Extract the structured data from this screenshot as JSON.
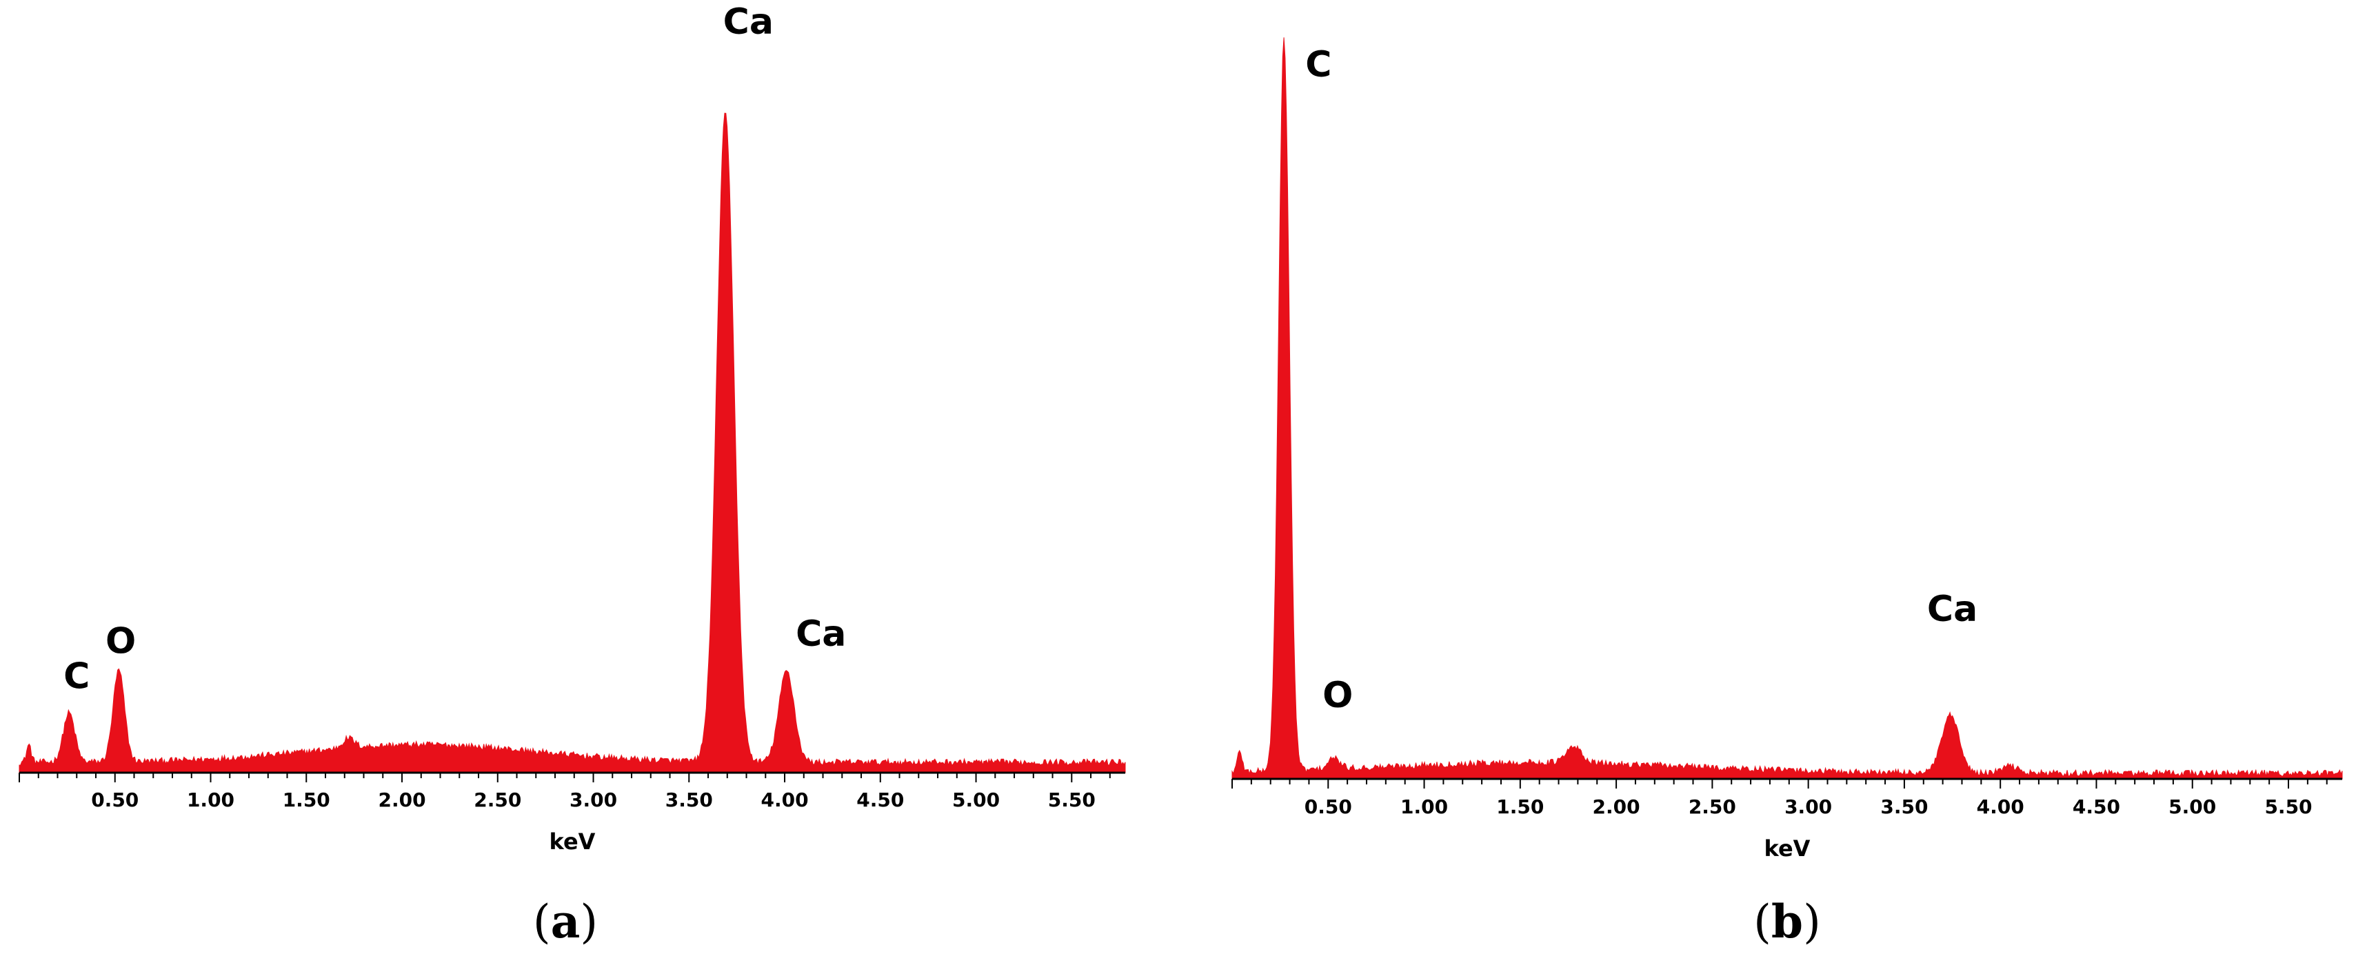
{
  "chart_data": [
    {
      "type": "area",
      "panel": "(a)",
      "panel_letter": "a",
      "xlabel": "keV",
      "xlim": [
        0,
        5.78
      ],
      "ylim": [
        0,
        100
      ],
      "x_ticks": [
        "0.50",
        "1.00",
        "1.50",
        "2.00",
        "2.50",
        "3.00",
        "3.50",
        "4.00",
        "4.50",
        "5.00",
        "5.50"
      ],
      "fill_color": "#e8101a",
      "baseline": 1.5,
      "peaks": [
        {
          "label": "",
          "x": 0.05,
          "height": 2.5,
          "width": 0.012
        },
        {
          "label": "C",
          "x": 0.26,
          "height": 7.0,
          "width": 0.03
        },
        {
          "label": "O",
          "x": 0.52,
          "height": 13.0,
          "width": 0.03
        },
        {
          "label": "Ca",
          "x": 3.69,
          "height": 92.0,
          "width": 0.045
        },
        {
          "label": "Ca",
          "x": 4.01,
          "height": 13.0,
          "width": 0.04
        }
      ],
      "humps": [
        {
          "x": 2.1,
          "height": 2.5,
          "width": 0.6
        },
        {
          "x": 1.72,
          "height": 1.4,
          "width": 0.03
        }
      ],
      "annotations": [
        {
          "text": "C",
          "x": 0.3,
          "y": 12
        },
        {
          "text": "O",
          "x": 0.53,
          "y": 17
        },
        {
          "text": "Ca",
          "x": 3.81,
          "y": 105
        },
        {
          "text": "Ca",
          "x": 4.19,
          "y": 18
        }
      ]
    },
    {
      "type": "area",
      "panel": "(b)",
      "panel_letter": "b",
      "xlabel": "keV",
      "xlim": [
        0,
        5.78
      ],
      "ylim": [
        0,
        100
      ],
      "x_ticks": [
        "0.50",
        "1.00",
        "1.50",
        "2.00",
        "2.50",
        "3.00",
        "3.50",
        "4.00",
        "4.50",
        "5.00",
        "5.50"
      ],
      "fill_color": "#e8101a",
      "baseline": 0.8,
      "peaks": [
        {
          "label": "",
          "x": 0.04,
          "height": 3.0,
          "width": 0.012
        },
        {
          "label": "C",
          "x": 0.27,
          "height": 102.0,
          "width": 0.028
        },
        {
          "label": "O",
          "x": 0.53,
          "height": 1.5,
          "width": 0.03
        },
        {
          "label": "",
          "x": 1.78,
          "height": 2.2,
          "width": 0.04
        },
        {
          "label": "Ca",
          "x": 3.74,
          "height": 8.0,
          "width": 0.045
        },
        {
          "label": "",
          "x": 4.05,
          "height": 1.0,
          "width": 0.04
        }
      ],
      "humps": [
        {
          "x": 1.6,
          "height": 1.5,
          "width": 0.8
        }
      ],
      "annotations": [
        {
          "text": "C",
          "x": 0.45,
          "y": 98
        },
        {
          "text": "O",
          "x": 0.55,
          "y": 10
        },
        {
          "text": "Ca",
          "x": 3.75,
          "y": 22
        }
      ]
    }
  ]
}
